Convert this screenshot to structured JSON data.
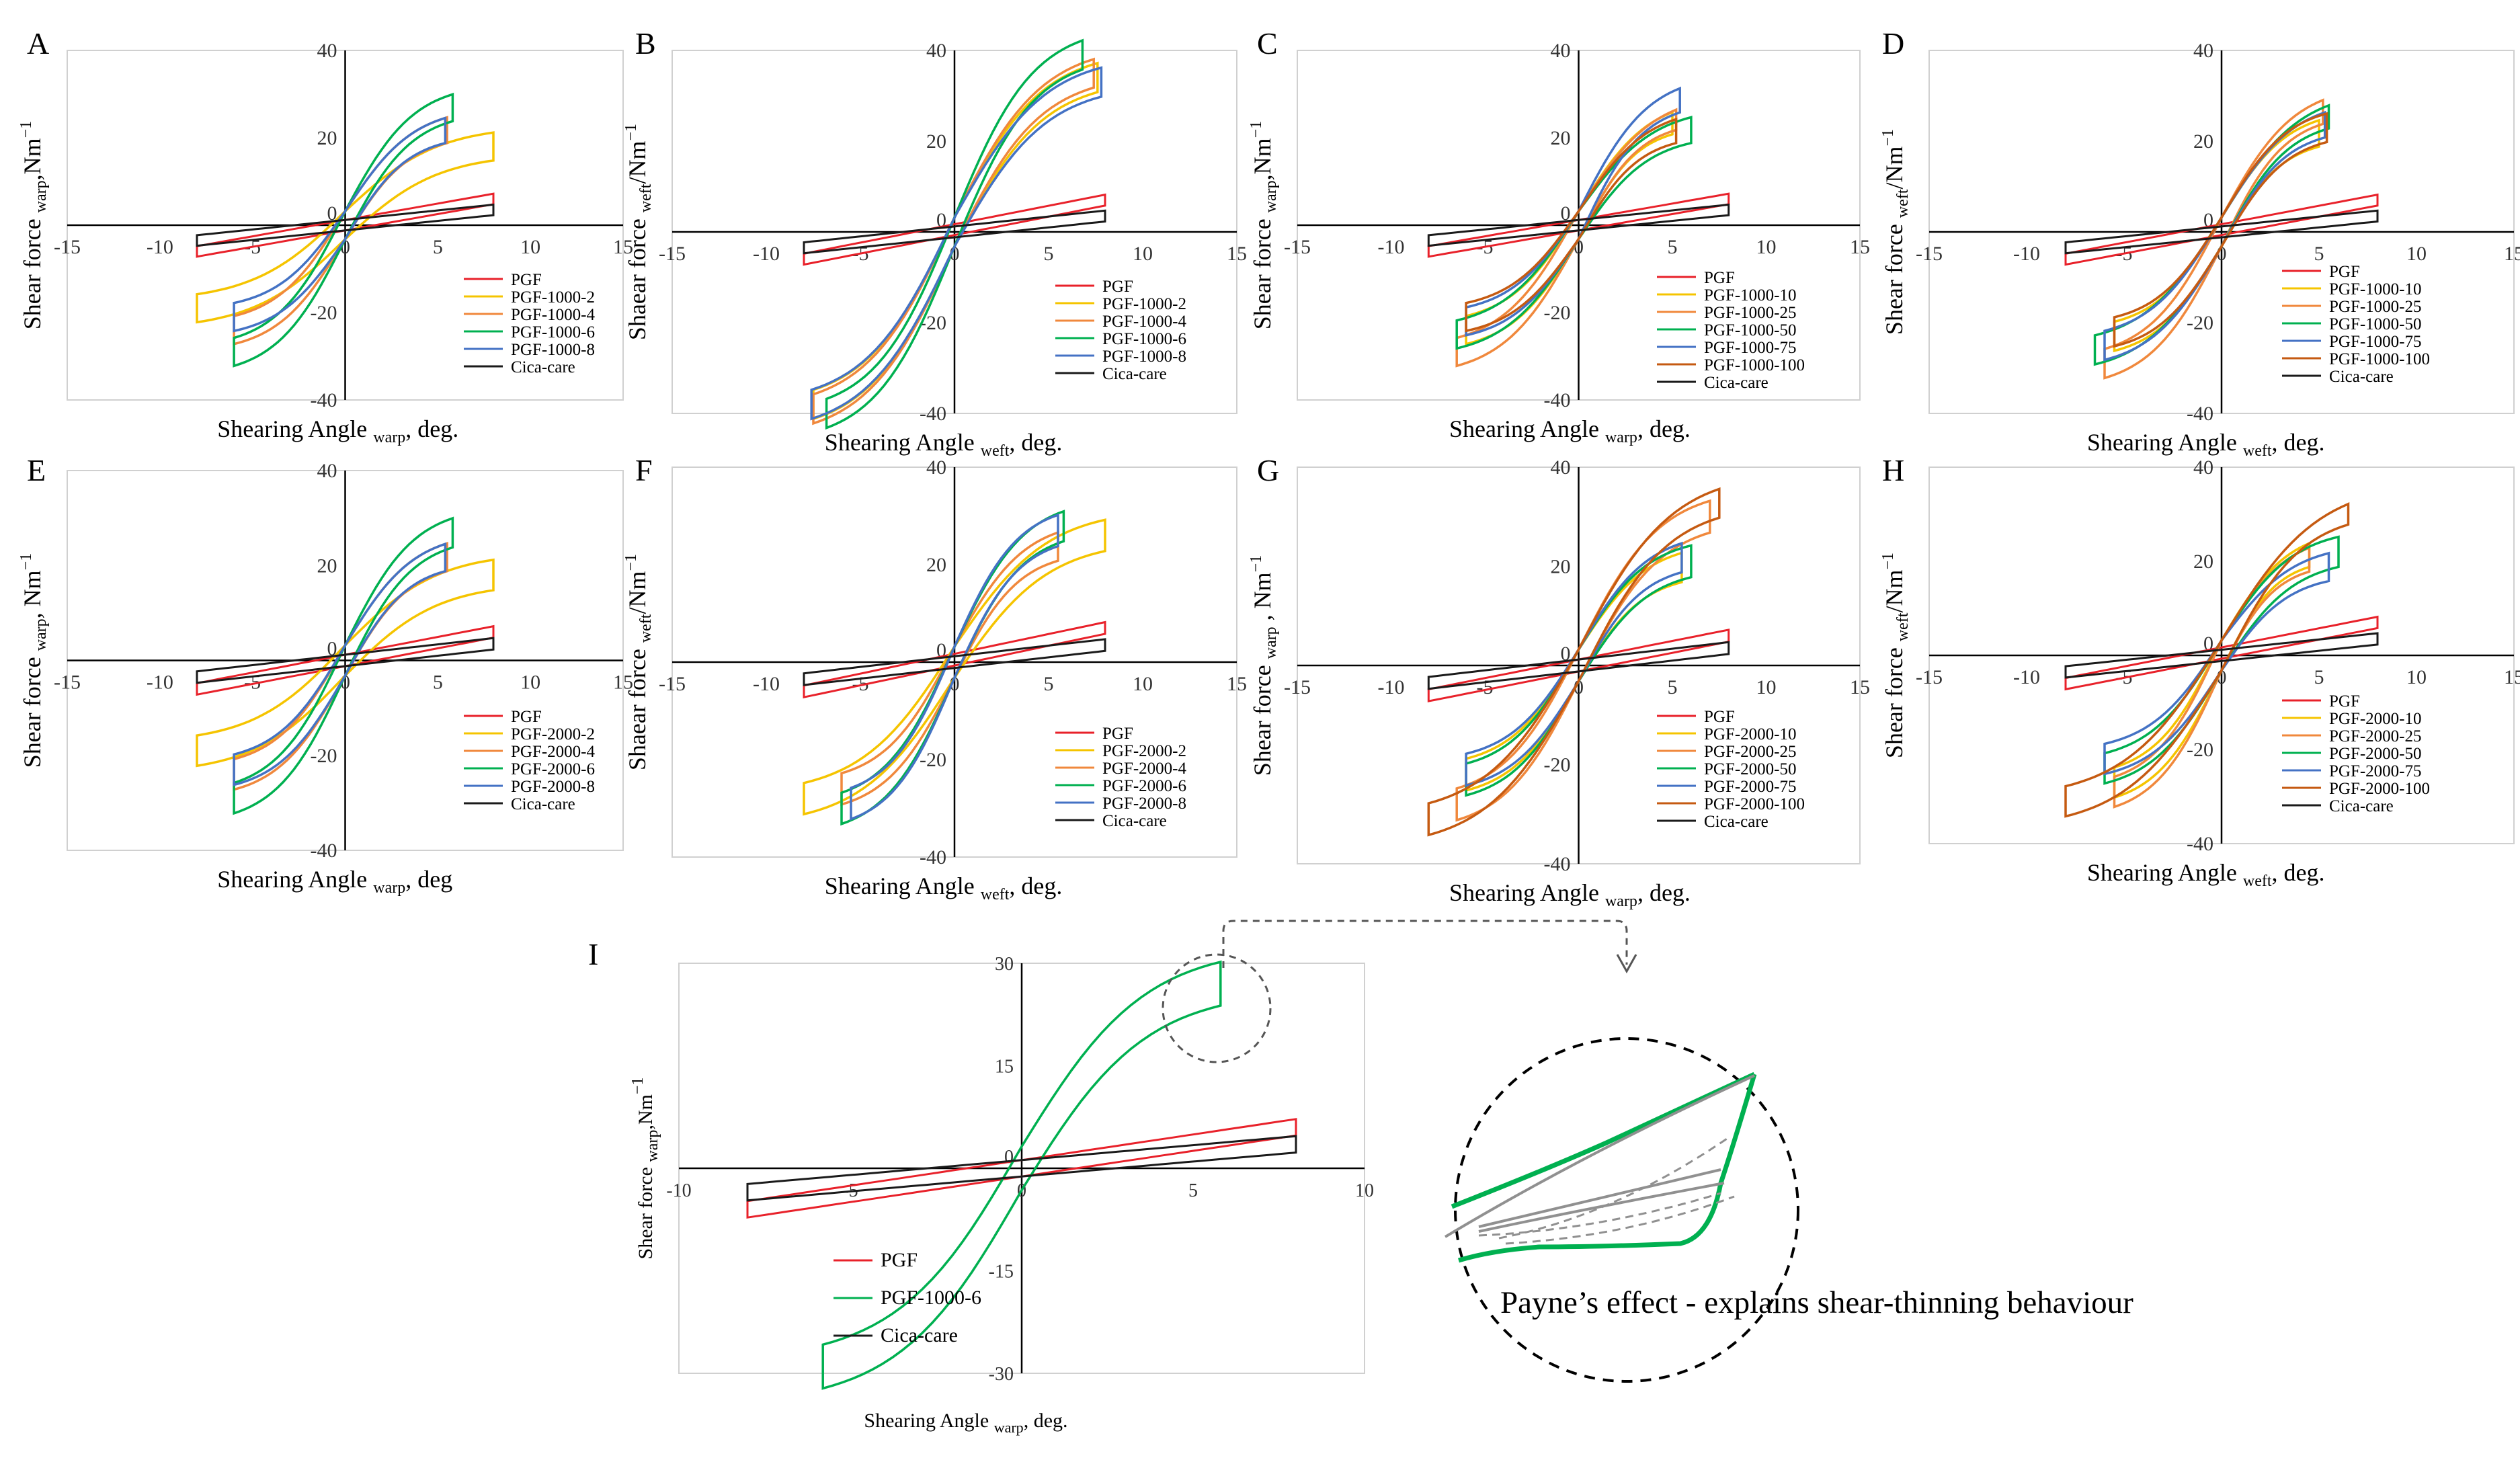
{
  "figure": {
    "callout": "Payne’s effect - explains shear-thinning  behaviour"
  },
  "colors": {
    "PGF": "#e8212a",
    "Cica-care": "#1a1a1a",
    "s1": "#f5c400",
    "s2": "#f0883c",
    "s3": "#00b050",
    "s4": "#4472c4",
    "s5": "#c55a11"
  },
  "chart_data": [
    {
      "panel": "A",
      "type": "line",
      "ylabel_main": "Shear force",
      "ylabel_sub": "warp",
      "ylabel_unit": ",Nm",
      "xlabel_main": "Shearing  Angle",
      "xlabel_sub": "warp",
      "xlabel_unit": ", deg.",
      "xlim": [
        -15,
        15
      ],
      "ylim": [
        -40,
        40
      ],
      "xticks": [
        -15,
        -10,
        -5,
        0,
        5,
        10,
        15
      ],
      "yticks": [
        40,
        20,
        0,
        -20,
        -40
      ],
      "series": [
        {
          "name": "PGF",
          "color_key": "PGF",
          "x": [
            -8,
            0,
            8
          ],
          "y": [
            -6,
            0,
            6
          ]
        },
        {
          "name": "PGF-1000-2",
          "color_key": "s1",
          "x": [
            -8,
            0,
            8
          ],
          "y": [
            -19,
            0,
            18
          ]
        },
        {
          "name": "PGF-1000-4",
          "color_key": "s2",
          "x": [
            -6,
            0,
            5.5
          ],
          "y": [
            -24,
            0,
            22
          ]
        },
        {
          "name": "PGF-1000-6",
          "color_key": "s3",
          "x": [
            -6,
            0,
            5.8
          ],
          "y": [
            -29,
            0,
            27
          ]
        },
        {
          "name": "PGF-1000-8",
          "color_key": "s4",
          "x": [
            -6,
            0,
            5.4
          ],
          "y": [
            -21,
            0,
            22
          ]
        },
        {
          "name": "Cica-care",
          "color_key": "Cica-care",
          "x": [
            -8,
            0,
            8
          ],
          "y": [
            -3.5,
            0,
            3.5
          ]
        }
      ]
    },
    {
      "panel": "B",
      "type": "line",
      "ylabel_main": "Shaear force",
      "ylabel_sub": "weft",
      "ylabel_unit": "/Nm",
      "xlabel_main": "Shearing  Angle",
      "xlabel_sub": "weft",
      "xlabel_unit": ", deg.",
      "xlim": [
        -15,
        15
      ],
      "ylim": [
        -40,
        40
      ],
      "xticks": [
        -15,
        -10,
        -5,
        0,
        5,
        10,
        15
      ],
      "yticks": [
        40,
        20,
        0,
        -20,
        -40
      ],
      "series": [
        {
          "name": "PGF",
          "color_key": "PGF",
          "x": [
            -8,
            0,
            8
          ],
          "y": [
            -6,
            0,
            7
          ]
        },
        {
          "name": "PGF-1000-2",
          "color_key": "s1",
          "x": [
            -7.5,
            0,
            7.6
          ],
          "y": [
            -38,
            0,
            34
          ]
        },
        {
          "name": "PGF-1000-4",
          "color_key": "s2",
          "x": [
            -7.5,
            0,
            7.4
          ],
          "y": [
            -39,
            0,
            35
          ]
        },
        {
          "name": "PGF-1000-6",
          "color_key": "s3",
          "x": [
            -6.8,
            0,
            6.8
          ],
          "y": [
            -40,
            0,
            39
          ]
        },
        {
          "name": "PGF-1000-8",
          "color_key": "s4",
          "x": [
            -7.6,
            0,
            7.8
          ],
          "y": [
            -38,
            0,
            33
          ]
        },
        {
          "name": "Cica-care",
          "color_key": "Cica-care",
          "x": [
            -8,
            0,
            8
          ],
          "y": [
            -3.5,
            0,
            3.5
          ]
        }
      ]
    },
    {
      "panel": "C",
      "type": "line",
      "ylabel_main": "Shear force",
      "ylabel_sub": "warp",
      "ylabel_unit": ",Nm",
      "xlabel_main": "Shearing  Angle",
      "xlabel_sub": "warp",
      "xlabel_unit": ", deg.",
      "xlim": [
        -15,
        15
      ],
      "ylim": [
        -40,
        40
      ],
      "xticks": [
        -15,
        -10,
        -5,
        0,
        5,
        10,
        15
      ],
      "yticks": [
        40,
        20,
        0,
        -20,
        -40
      ],
      "series": [
        {
          "name": "PGF",
          "color_key": "PGF",
          "x": [
            -8,
            0,
            8
          ],
          "y": [
            -6,
            0,
            6
          ]
        },
        {
          "name": "PGF-1000-10",
          "color_key": "s1",
          "x": [
            -6,
            0,
            5
          ],
          "y": [
            -24,
            0,
            24
          ]
        },
        {
          "name": "PGF-1000-25",
          "color_key": "s2",
          "x": [
            -6.5,
            0,
            5.2
          ],
          "y": [
            -29,
            0,
            25
          ]
        },
        {
          "name": "PGF-1000-50",
          "color_key": "s3",
          "x": [
            -6.5,
            0,
            6
          ],
          "y": [
            -25,
            0,
            22
          ]
        },
        {
          "name": "PGF-1000-75",
          "color_key": "s4",
          "x": [
            -6,
            0,
            5.4
          ],
          "y": [
            -22,
            0,
            29
          ]
        },
        {
          "name": "PGF-1000-100",
          "color_key": "s5",
          "x": [
            -6,
            0,
            5.2
          ],
          "y": [
            -21,
            0,
            22
          ]
        },
        {
          "name": "Cica-care",
          "color_key": "Cica-care",
          "x": [
            -8,
            0,
            8
          ],
          "y": [
            -3.5,
            0,
            3.5
          ]
        }
      ]
    },
    {
      "panel": "D",
      "type": "line",
      "ylabel_main": "Shear force",
      "ylabel_sub": "weft",
      "ylabel_unit": "/Nm",
      "xlabel_main": "Shearing  Angle",
      "xlabel_sub": "weft",
      "xlabel_unit": ", deg.",
      "xlim": [
        -15,
        15
      ],
      "ylim": [
        -40,
        40
      ],
      "xticks": [
        -15,
        -10,
        -5,
        0,
        5,
        10,
        15
      ],
      "yticks": [
        40,
        20,
        0,
        -20,
        -40
      ],
      "series": [
        {
          "name": "PGF",
          "color_key": "PGF",
          "x": [
            -8,
            0,
            8
          ],
          "y": [
            -6,
            0,
            7
          ]
        },
        {
          "name": "PGF-1000-10",
          "color_key": "s1",
          "x": [
            -5.5,
            0,
            5
          ],
          "y": [
            -23,
            0,
            22
          ]
        },
        {
          "name": "PGF-1000-25",
          "color_key": "s2",
          "x": [
            -6,
            0,
            5.2
          ],
          "y": [
            -29,
            0,
            27
          ]
        },
        {
          "name": "PGF-1000-50",
          "color_key": "s3",
          "x": [
            -6.5,
            0,
            5.5
          ],
          "y": [
            -26,
            0,
            26
          ]
        },
        {
          "name": "PGF-1000-75",
          "color_key": "s4",
          "x": [
            -6,
            0,
            5.3
          ],
          "y": [
            -25,
            0,
            24
          ]
        },
        {
          "name": "PGF-1000-100",
          "color_key": "s5",
          "x": [
            -5.5,
            0,
            5.4
          ],
          "y": [
            -22,
            0,
            23
          ]
        },
        {
          "name": "Cica-care",
          "color_key": "Cica-care",
          "x": [
            -8,
            0,
            8
          ],
          "y": [
            -3.5,
            0,
            3.5
          ]
        }
      ]
    },
    {
      "panel": "E",
      "type": "line",
      "ylabel_main": "Shear force",
      "ylabel_sub": "warp",
      "ylabel_unit": ", Nm",
      "xlabel_main": "Shearing  Angle",
      "xlabel_sub": "warp",
      "xlabel_unit": ", deg",
      "xlim": [
        -15,
        15
      ],
      "ylim": [
        -40,
        40
      ],
      "xticks": [
        -15,
        -10,
        -5,
        0,
        5,
        10,
        15
      ],
      "yticks": [
        40,
        20,
        0,
        -20,
        -40
      ],
      "series": [
        {
          "name": "PGF",
          "color_key": "PGF",
          "x": [
            -8,
            0,
            8
          ],
          "y": [
            -6,
            0,
            6
          ]
        },
        {
          "name": "PGF-2000-2",
          "color_key": "s1",
          "x": [
            -8,
            0,
            8
          ],
          "y": [
            -19,
            0,
            18
          ]
        },
        {
          "name": "PGF-2000-4",
          "color_key": "s2",
          "x": [
            -6,
            0,
            5.5
          ],
          "y": [
            -24,
            0,
            22
          ]
        },
        {
          "name": "PGF-2000-6",
          "color_key": "s3",
          "x": [
            -6,
            0,
            5.8
          ],
          "y": [
            -29,
            0,
            27
          ]
        },
        {
          "name": "PGF-2000-8",
          "color_key": "s4",
          "x": [
            -6,
            0,
            5.4
          ],
          "y": [
            -23,
            0,
            22
          ]
        },
        {
          "name": "Cica-care",
          "color_key": "Cica-care",
          "x": [
            -8,
            0,
            8
          ],
          "y": [
            -3.5,
            0,
            3.5
          ]
        }
      ]
    },
    {
      "panel": "F",
      "type": "line",
      "ylabel_main": "Shaear force",
      "ylabel_sub": "weft",
      "ylabel_unit": "/Nm",
      "xlabel_main": "Shearing  Angle",
      "xlabel_sub": "weft",
      "xlabel_unit": ", deg.",
      "xlim": [
        -15,
        15
      ],
      "ylim": [
        -40,
        40
      ],
      "xticks": [
        -15,
        -10,
        -5,
        0,
        5,
        10,
        15
      ],
      "yticks": [
        40,
        20,
        0,
        -20,
        -40
      ],
      "series": [
        {
          "name": "PGF",
          "color_key": "PGF",
          "x": [
            -8,
            0,
            8
          ],
          "y": [
            -6,
            0,
            7
          ]
        },
        {
          "name": "PGF-2000-2",
          "color_key": "s1",
          "x": [
            -8,
            0,
            8
          ],
          "y": [
            -28,
            0,
            26
          ]
        },
        {
          "name": "PGF-2000-4",
          "color_key": "s2",
          "x": [
            -6,
            0,
            5.5
          ],
          "y": [
            -26,
            0,
            24
          ]
        },
        {
          "name": "PGF-2000-6",
          "color_key": "s3",
          "x": [
            -6,
            0,
            5.8
          ],
          "y": [
            -30,
            0,
            28
          ]
        },
        {
          "name": "PGF-2000-8",
          "color_key": "s4",
          "x": [
            -5.5,
            0,
            5.5
          ],
          "y": [
            -29,
            0,
            27
          ]
        },
        {
          "name": "Cica-care",
          "color_key": "Cica-care",
          "x": [
            -8,
            0,
            8
          ],
          "y": [
            -3.5,
            0,
            3.5
          ]
        }
      ]
    },
    {
      "panel": "G",
      "type": "line",
      "ylabel_main": "Shear force",
      "ylabel_sub": "warp",
      "ylabel_unit": " , Nm",
      "xlabel_main": "Shearing  Angle",
      "xlabel_sub": "warp",
      "xlabel_unit": ", deg.",
      "xlim": [
        -15,
        15
      ],
      "ylim": [
        -40,
        40
      ],
      "xticks": [
        -15,
        -10,
        -5,
        0,
        5,
        10,
        15
      ],
      "yticks": [
        40,
        20,
        0,
        -20,
        -40
      ],
      "series": [
        {
          "name": "PGF",
          "color_key": "PGF",
          "x": [
            -8,
            0,
            8
          ],
          "y": [
            -6,
            0,
            6
          ]
        },
        {
          "name": "PGF-2000-10",
          "color_key": "s1",
          "x": [
            -6,
            0,
            5.5
          ],
          "y": [
            -22,
            0,
            20
          ]
        },
        {
          "name": "PGF-2000-25",
          "color_key": "s2",
          "x": [
            -6.5,
            0,
            7
          ],
          "y": [
            -28,
            0,
            30
          ]
        },
        {
          "name": "PGF-2000-50",
          "color_key": "s3",
          "x": [
            -6,
            0,
            6
          ],
          "y": [
            -23,
            0,
            21
          ]
        },
        {
          "name": "PGF-2000-75",
          "color_key": "s4",
          "x": [
            -6,
            0,
            5.5
          ],
          "y": [
            -21,
            0,
            22
          ]
        },
        {
          "name": "PGF-2000-100",
          "color_key": "s5",
          "x": [
            -8,
            0,
            7.5
          ],
          "y": [
            -31,
            0,
            33
          ]
        },
        {
          "name": "Cica-care",
          "color_key": "Cica-care",
          "x": [
            -8,
            0,
            8
          ],
          "y": [
            -3.5,
            0,
            3.5
          ]
        }
      ]
    },
    {
      "panel": "H",
      "type": "line",
      "ylabel_main": "Shear force",
      "ylabel_sub": "weft",
      "ylabel_unit": "/Nm",
      "xlabel_main": "Shearing  Angle",
      "xlabel_sub": "weft",
      "xlabel_unit": ", deg.",
      "xlim": [
        -15,
        15
      ],
      "ylim": [
        -40,
        40
      ],
      "xticks": [
        -15,
        -10,
        -5,
        0,
        5,
        10,
        15
      ],
      "yticks": [
        40,
        20,
        0,
        -20,
        -40
      ],
      "series": [
        {
          "name": "PGF",
          "color_key": "PGF",
          "x": [
            -8,
            0,
            8
          ],
          "y": [
            -6,
            0,
            7
          ]
        },
        {
          "name": "PGF-2000-10",
          "color_key": "s1",
          "x": [
            -5.5,
            0,
            4.5
          ],
          "y": [
            -27,
            0,
            22
          ]
        },
        {
          "name": "PGF-2000-25",
          "color_key": "s2",
          "x": [
            -5.5,
            0,
            4.5
          ],
          "y": [
            -29,
            0,
            21
          ]
        },
        {
          "name": "PGF-2000-50",
          "color_key": "s3",
          "x": [
            -6,
            0,
            6
          ],
          "y": [
            -24,
            0,
            22
          ]
        },
        {
          "name": "PGF-2000-75",
          "color_key": "s4",
          "x": [
            -6,
            0,
            5.5
          ],
          "y": [
            -22,
            0,
            19
          ]
        },
        {
          "name": "PGF-2000-100",
          "color_key": "s5",
          "x": [
            -8,
            0,
            6.5
          ],
          "y": [
            -31,
            0,
            31
          ]
        },
        {
          "name": "Cica-care",
          "color_key": "Cica-care",
          "x": [
            -8,
            0,
            8
          ],
          "y": [
            -3.5,
            0,
            3.5
          ]
        }
      ]
    },
    {
      "panel": "I",
      "type": "line",
      "ylabel_main": "Shear force",
      "ylabel_sub": "warp",
      "ylabel_unit": ",Nm",
      "xlabel_main": "Shearing Angle",
      "xlabel_sub": "warp",
      "xlabel_unit": ", deg.",
      "xlim": [
        -10,
        10
      ],
      "ylim": [
        -30,
        30
      ],
      "xticks": [
        -10,
        -5,
        0,
        5,
        10
      ],
      "yticks": [
        30,
        15,
        0,
        -15,
        -30
      ],
      "series": [
        {
          "name": "PGF",
          "color_key": "PGF",
          "x": [
            -8,
            0,
            8
          ],
          "y": [
            -6,
            0,
            6
          ]
        },
        {
          "name": "PGF-1000-6",
          "color_key": "s3",
          "x": [
            -5.8,
            0,
            5.8
          ],
          "y": [
            -29,
            0,
            27
          ]
        },
        {
          "name": "Cica-care",
          "color_key": "Cica-care",
          "x": [
            -8,
            0,
            8
          ],
          "y": [
            -3.5,
            0,
            3.5
          ]
        }
      ]
    }
  ]
}
